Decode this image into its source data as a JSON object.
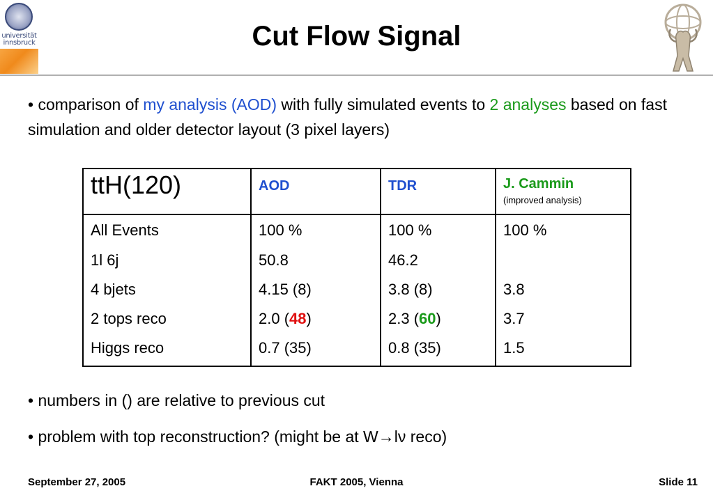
{
  "logo_left": {
    "text": "universität\ninnsbruck"
  },
  "title": "Cut Flow Signal",
  "bullet1": {
    "prefix": "• comparison of ",
    "hl1": "my analysis (AOD)",
    "mid": " with fully simulated events to ",
    "hl2": "2 analyses",
    "suffix": " based on fast simulation and older detector layout (3 pixel layers)"
  },
  "table": {
    "header": {
      "c1": "ttH(120)",
      "c2": "AOD",
      "c3": "TDR",
      "c4": "J. Cammin",
      "c4_sub": "(improved analysis)"
    },
    "rows": [
      {
        "c1": "All Events",
        "c2": "100 %",
        "c3": "100 %",
        "c4": "100 %"
      },
      {
        "c1": "1l 6j",
        "c2": "50.8",
        "c3": "46.2",
        "c4": ""
      },
      {
        "c1": "4 bjets",
        "c2": "4.15 (8)",
        "c3": "3.8 (8)",
        "c4": "3.8"
      },
      {
        "c1": "2 tops reco",
        "c2_pre": "2.0 (",
        "c2_hl": "48",
        "c2_post": ")",
        "c3_pre": "2.3 (",
        "c3_hl": "60",
        "c3_post": ")",
        "c4": "3.7"
      },
      {
        "c1": "Higgs reco",
        "c2": "0.7 (35)",
        "c3": "0.8 (35)",
        "c4": "1.5"
      }
    ]
  },
  "bullet2": "• numbers in () are relative to previous cut",
  "bullet3": "• problem with top reconstruction? (might be at W→lν reco)",
  "footer": {
    "date": "September 27, 2005",
    "event": "FAKT 2005, Vienna",
    "slide": "Slide 11"
  },
  "colors": {
    "blue": "#1f4fcf",
    "green": "#1a9a1a",
    "red": "#e01010"
  }
}
